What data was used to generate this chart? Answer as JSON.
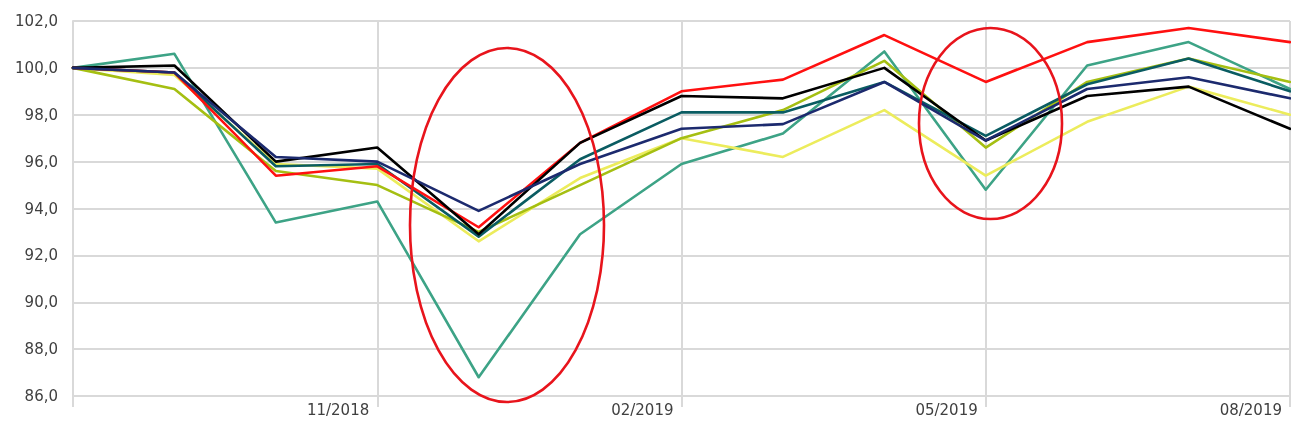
{
  "chart_data": {
    "type": "line",
    "categories": [
      null,
      null,
      null,
      "11/2018",
      null,
      null,
      "02/2019",
      null,
      null,
      "05/2019",
      null,
      null,
      "08/2019"
    ],
    "series": [
      {
        "color": "#3da386",
        "values": [
          100,
          100.6,
          93.4,
          94.3,
          86.8,
          92.9,
          95.9,
          97.2,
          100.7,
          94.8,
          100.1,
          101.1,
          99.1
        ]
      },
      {
        "color": "#ecec5c",
        "values": [
          100,
          99.7,
          95.9,
          95.7,
          92.6,
          95.3,
          97.0,
          96.2,
          98.2,
          95.4,
          97.7,
          99.2,
          98.0
        ]
      },
      {
        "color": "#a5bf12",
        "values": [
          100,
          99.1,
          95.6,
          95.0,
          93.0,
          95.0,
          97.0,
          98.2,
          100.3,
          96.6,
          99.4,
          100.4,
          99.4
        ]
      },
      {
        "color": "#0a5c62",
        "values": [
          100,
          99.8,
          95.8,
          95.9,
          92.8,
          96.1,
          98.1,
          98.1,
          99.4,
          97.1,
          99.3,
          100.4,
          99.0
        ]
      },
      {
        "color": "#ff1010",
        "values": [
          100,
          99.8,
          95.4,
          95.8,
          93.2,
          96.8,
          99.0,
          99.5,
          101.4,
          99.4,
          101.1,
          101.7,
          101.1
        ]
      },
      {
        "color": "#000000",
        "values": [
          100,
          100.1,
          96.0,
          96.6,
          92.9,
          96.8,
          98.8,
          98.7,
          100.0,
          96.9,
          98.8,
          99.2,
          97.4
        ]
      },
      {
        "color": "#1c2a6e",
        "values": [
          100,
          99.8,
          96.2,
          96.0,
          93.9,
          95.9,
          97.4,
          97.6,
          99.4,
          96.9,
          99.1,
          99.6,
          98.7
        ]
      }
    ],
    "ylim": [
      86,
      102
    ],
    "yticks": [
      {
        "value": 86,
        "label": "86,0"
      },
      {
        "value": 88,
        "label": "88,0"
      },
      {
        "value": 90,
        "label": "90,0"
      },
      {
        "value": 92,
        "label": "92,0"
      },
      {
        "value": 94,
        "label": "94,0"
      },
      {
        "value": 96,
        "label": "96,0"
      },
      {
        "value": 98,
        "label": "98,0"
      },
      {
        "value": 100,
        "label": "100,0"
      },
      {
        "value": 102,
        "label": "102,0"
      }
    ],
    "grid": true,
    "marker": "none",
    "line_style": "solid"
  }
}
